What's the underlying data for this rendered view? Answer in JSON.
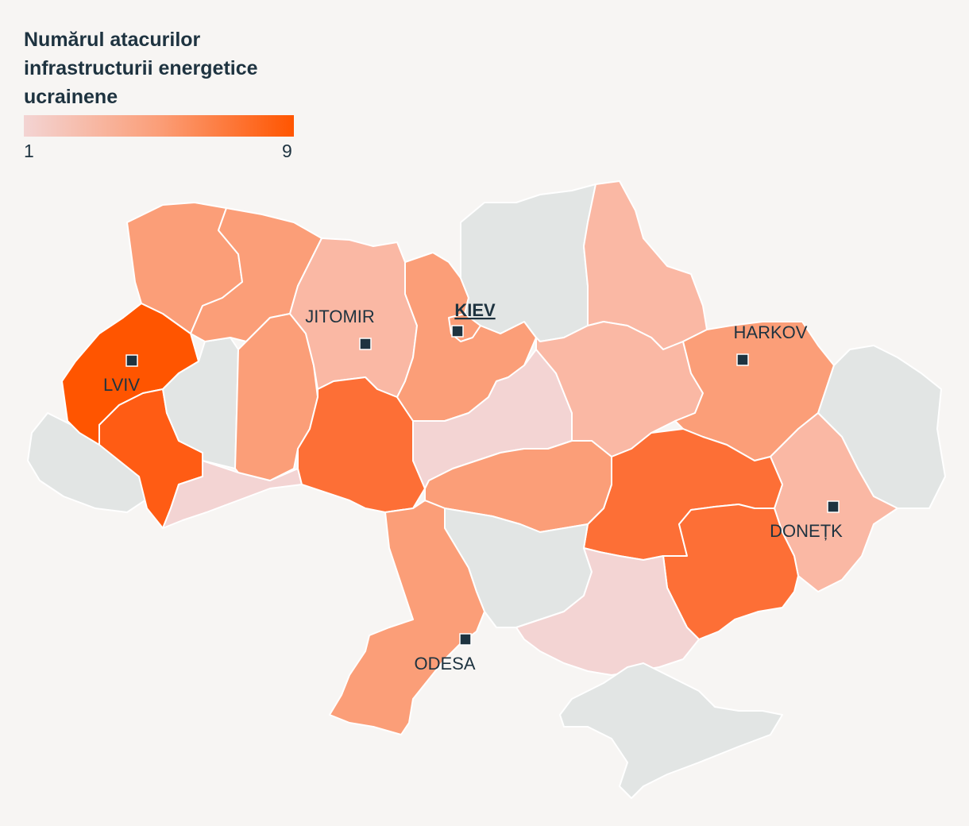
{
  "title": "Numărul atacurilor infrastructurii energetice ucrainene",
  "legend": {
    "min_label": "1",
    "max_label": "9",
    "min_value": 1,
    "max_value": 9,
    "color_low": "#f3d4d3",
    "color_mid": "#fb9e78",
    "color_high": "#ff5500",
    "no_data_color": "#e2e5e4"
  },
  "colors": {
    "background": "#f7f5f3",
    "text": "#1e3340",
    "border": "#ffffff"
  },
  "cities": [
    {
      "id": "lviv",
      "label": "LVIV",
      "capital": false
    },
    {
      "id": "jitomir",
      "label": "JITOMIR",
      "capital": false
    },
    {
      "id": "kiev",
      "label": "KIEV",
      "capital": true
    },
    {
      "id": "harkov",
      "label": "HARKOV",
      "capital": false
    },
    {
      "id": "donetk",
      "label": "DONEȚK",
      "capital": false
    },
    {
      "id": "odesa",
      "label": "ODESA",
      "capital": false
    }
  ],
  "regions": [
    {
      "id": "lviv",
      "level": "max"
    },
    {
      "id": "ivano-frankivsk",
      "level": "very-high"
    },
    {
      "id": "volyn",
      "level": "medium"
    },
    {
      "id": "rivne",
      "level": "medium"
    },
    {
      "id": "ternopil",
      "level": "no-data"
    },
    {
      "id": "khmelnytskyi",
      "level": "medium"
    },
    {
      "id": "zhytomyr",
      "level": "low"
    },
    {
      "id": "vinnytsia",
      "level": "high"
    },
    {
      "id": "kyiv-oblast",
      "level": "medium"
    },
    {
      "id": "kyiv-city",
      "level": "medium"
    },
    {
      "id": "cherkasy",
      "level": "very-low"
    },
    {
      "id": "chernihiv",
      "level": "no-data"
    },
    {
      "id": "sumy",
      "level": "low"
    },
    {
      "id": "poltava",
      "level": "low"
    },
    {
      "id": "kharkiv",
      "level": "medium"
    },
    {
      "id": "luhansk",
      "level": "no-data"
    },
    {
      "id": "donetsk",
      "level": "low"
    },
    {
      "id": "dnipropetrovsk",
      "level": "high"
    },
    {
      "id": "zaporizhzhia",
      "level": "high"
    },
    {
      "id": "kirovohrad",
      "level": "medium"
    },
    {
      "id": "mykolaiv",
      "level": "no-data"
    },
    {
      "id": "odesa",
      "level": "medium"
    },
    {
      "id": "kherson",
      "level": "very-low"
    },
    {
      "id": "zakarpattia",
      "level": "no-data"
    },
    {
      "id": "chernivtsi",
      "level": "very-low"
    },
    {
      "id": "crimea",
      "level": "no-data"
    }
  ]
}
